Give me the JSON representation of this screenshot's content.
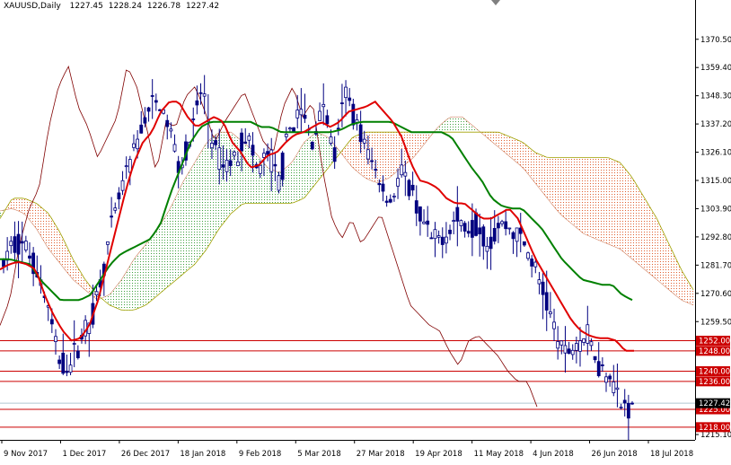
{
  "header": {
    "symbol": "XAUUSD,Daily",
    "open": "1227.45",
    "high": "1228.24",
    "low": "1226.78",
    "close": "1227.42"
  },
  "colors": {
    "background": "#ffffff",
    "frame": "#000000",
    "candles": "#000080",
    "tenkan_sen": "#e00000",
    "kijun_sen": "#008000",
    "chikou_span": "#800000",
    "kumo_bearish": "#e06030",
    "kumo_bullish": "#40a040",
    "span_b": "#a0a000",
    "horizontal_levels": "#cc0000",
    "price_line": "#b0c8d0",
    "level_label_bg": "#cc0000",
    "current_label_bg": "#000000"
  },
  "chart_data": {
    "type": "candlestick",
    "indicator": "Ichimoku Kinko Hyo",
    "ylim": [
      1213,
      1381
    ],
    "y_ticks": [
      1370.5,
      1359.4,
      1348.3,
      1337.2,
      1326.1,
      1315.0,
      1303.9,
      1292.8,
      1281.7,
      1270.6,
      1259.5,
      1215.1
    ],
    "y_tick_labels": [
      "1370.50",
      "1359.40",
      "1348.30",
      "1337.20",
      "1326.10",
      "1315.00",
      "1303.90",
      "1292.80",
      "1281.70",
      "1270.60",
      "1259.50",
      "1215.10"
    ],
    "x_tick_labels": [
      "9 Nov 2017",
      "1 Dec 2017",
      "26 Dec 2017",
      "18 Jan 2018",
      "9 Feb 2018",
      "5 Mar 2018",
      "27 Mar 2018",
      "19 Apr 2018",
      "11 May 2018",
      "4 Jun 2018",
      "26 Jun 2018",
      "18 Jul 2018"
    ],
    "horizontal_levels": [
      1252.0,
      1248.0,
      1240.0,
      1236.0,
      1225.0,
      1218.0
    ],
    "horizontal_level_labels": [
      "1252.00",
      "1248.00",
      "1240.00",
      "1236.00",
      "1225.00",
      "1218.00"
    ],
    "current_price": 1227.42,
    "current_price_label": "1227.42",
    "ohlc_anchors": [
      [
        1284,
        1287,
        1277,
        1282
      ],
      [
        1288,
        1295,
        1281,
        1291
      ],
      [
        1292,
        1297,
        1286,
        1289
      ],
      [
        1284,
        1291,
        1278,
        1280
      ],
      [
        1275,
        1279,
        1262,
        1266
      ],
      [
        1255,
        1258,
        1242,
        1244
      ],
      [
        1243,
        1247,
        1236,
        1242
      ],
      [
        1250,
        1256,
        1246,
        1253
      ],
      [
        1257,
        1264,
        1253,
        1261
      ],
      [
        1270,
        1283,
        1268,
        1280
      ],
      [
        1294,
        1303,
        1290,
        1300
      ],
      [
        1310,
        1320,
        1305,
        1316
      ],
      [
        1322,
        1332,
        1316,
        1328
      ],
      [
        1335,
        1348,
        1330,
        1342
      ],
      [
        1348,
        1362,
        1340,
        1346
      ],
      [
        1345,
        1352,
        1333,
        1336
      ],
      [
        1332,
        1340,
        1318,
        1320
      ],
      [
        1322,
        1336,
        1316,
        1332
      ],
      [
        1338,
        1358,
        1332,
        1352
      ],
      [
        1340,
        1348,
        1326,
        1328
      ],
      [
        1326,
        1332,
        1316,
        1320
      ],
      [
        1318,
        1327,
        1312,
        1324
      ],
      [
        1326,
        1338,
        1320,
        1334
      ],
      [
        1328,
        1336,
        1316,
        1318
      ],
      [
        1316,
        1328,
        1310,
        1326
      ],
      [
        1322,
        1332,
        1310,
        1314
      ],
      [
        1318,
        1340,
        1314,
        1336
      ],
      [
        1350,
        1362,
        1338,
        1342
      ],
      [
        1336,
        1346,
        1326,
        1330
      ],
      [
        1334,
        1352,
        1328,
        1346
      ],
      [
        1330,
        1340,
        1320,
        1324
      ],
      [
        1346,
        1366,
        1338,
        1350
      ],
      [
        1348,
        1354,
        1336,
        1338
      ],
      [
        1330,
        1338,
        1322,
        1326
      ],
      [
        1322,
        1328,
        1312,
        1316
      ],
      [
        1310,
        1318,
        1302,
        1306
      ],
      [
        1312,
        1322,
        1308,
        1318
      ],
      [
        1314,
        1320,
        1306,
        1310
      ],
      [
        1300,
        1312,
        1296,
        1298
      ],
      [
        1294,
        1304,
        1286,
        1290
      ],
      [
        1294,
        1300,
        1288,
        1294
      ],
      [
        1296,
        1306,
        1292,
        1300
      ],
      [
        1300,
        1306,
        1294,
        1296
      ],
      [
        1300,
        1304,
        1294,
        1298
      ],
      [
        1292,
        1300,
        1286,
        1290
      ],
      [
        1302,
        1306,
        1296,
        1298
      ],
      [
        1300,
        1304,
        1294,
        1296
      ],
      [
        1296,
        1306,
        1290,
        1292
      ],
      [
        1290,
        1298,
        1280,
        1282
      ],
      [
        1272,
        1282,
        1266,
        1270
      ],
      [
        1262,
        1270,
        1254,
        1256
      ],
      [
        1252,
        1262,
        1244,
        1246
      ],
      [
        1250,
        1258,
        1244,
        1252
      ],
      [
        1256,
        1264,
        1248,
        1254
      ],
      [
        1252,
        1258,
        1240,
        1242
      ],
      [
        1242,
        1246,
        1238,
        1240
      ],
      [
        1238,
        1240,
        1224,
        1226
      ],
      [
        1227.45,
        1228.24,
        1226.78,
        1227.42
      ]
    ],
    "tenkan_anchors": [
      1280,
      1282,
      1283,
      1282,
      1280,
      1270,
      1262,
      1256,
      1252,
      1253,
      1258,
      1268,
      1282,
      1296,
      1310,
      1322,
      1330,
      1334,
      1342,
      1346,
      1346,
      1340,
      1336,
      1338,
      1340,
      1338,
      1330,
      1326,
      1320,
      1321,
      1325,
      1326,
      1330,
      1333,
      1334,
      1336,
      1338,
      1336,
      1338,
      1342,
      1343,
      1344,
      1346,
      1342,
      1338,
      1332,
      1322,
      1315,
      1314,
      1312,
      1308,
      1306,
      1306,
      1303,
      1300,
      1300,
      1302,
      1304,
      1300,
      1292,
      1284,
      1278,
      1272,
      1266,
      1260,
      1256,
      1254,
      1253,
      1253,
      1252,
      1248,
      1248
    ],
    "kijun_anchors": [
      1284,
      1284,
      1283,
      1282,
      1276,
      1272,
      1268,
      1268,
      1268,
      1270,
      1276,
      1282,
      1286,
      1288,
      1290,
      1292,
      1298,
      1310,
      1320,
      1330,
      1336,
      1338,
      1338,
      1338,
      1338,
      1338,
      1336,
      1336,
      1334,
      1334,
      1334,
      1334,
      1334,
      1334,
      1335,
      1337,
      1338,
      1338,
      1338,
      1338,
      1336,
      1334,
      1334,
      1334,
      1334,
      1332,
      1326,
      1320,
      1315,
      1308,
      1305,
      1304,
      1304,
      1300,
      1296,
      1290,
      1284,
      1280,
      1276,
      1275,
      1274,
      1274,
      1270,
      1268
    ],
    "chikou_anchors": [
      1258,
      1268,
      1290,
      1304,
      1312,
      1336,
      1352,
      1360,
      1344,
      1336,
      1324,
      1332,
      1340,
      1360,
      1352,
      1336,
      1318,
      1338,
      1336,
      1348,
      1352,
      1342,
      1330,
      1338,
      1344,
      1350,
      1340,
      1330,
      1326,
      1344,
      1352,
      1340,
      1346,
      1320,
      1300,
      1292,
      1300,
      1290,
      1296,
      1302,
      1290,
      1278,
      1266,
      1262,
      1258,
      1256,
      1248,
      1242,
      1252,
      1254,
      1250,
      1246,
      1240,
      1236,
      1236,
      1226
    ],
    "span_a_anchors": [
      1303,
      1304,
      1302,
      1296,
      1288,
      1282,
      1276,
      1272,
      1268,
      1270,
      1276,
      1284,
      1290,
      1296,
      1304,
      1314,
      1322,
      1330,
      1334,
      1334,
      1330,
      1326,
      1320,
      1318,
      1322,
      1330,
      1334,
      1332,
      1326,
      1320,
      1316,
      1314,
      1316,
      1320,
      1324,
      1330,
      1336,
      1340,
      1340,
      1336,
      1332,
      1328,
      1324,
      1320,
      1314,
      1308,
      1302,
      1298,
      1294,
      1292,
      1290,
      1288,
      1284,
      1280,
      1276,
      1272,
      1268,
      1266
    ],
    "span_b_anchors": [
      1300,
      1308,
      1308,
      1306,
      1302,
      1294,
      1284,
      1276,
      1270,
      1266,
      1264,
      1264,
      1266,
      1270,
      1274,
      1278,
      1282,
      1288,
      1296,
      1302,
      1306,
      1306,
      1306,
      1306,
      1306,
      1308,
      1314,
      1320,
      1326,
      1332,
      1334,
      1334,
      1334,
      1334,
      1334,
      1334,
      1334,
      1334,
      1334,
      1334,
      1334,
      1334,
      1332,
      1330,
      1326,
      1324,
      1324,
      1324,
      1324,
      1324,
      1324,
      1322,
      1316,
      1308,
      1300,
      1290,
      1280,
      1272
    ]
  }
}
